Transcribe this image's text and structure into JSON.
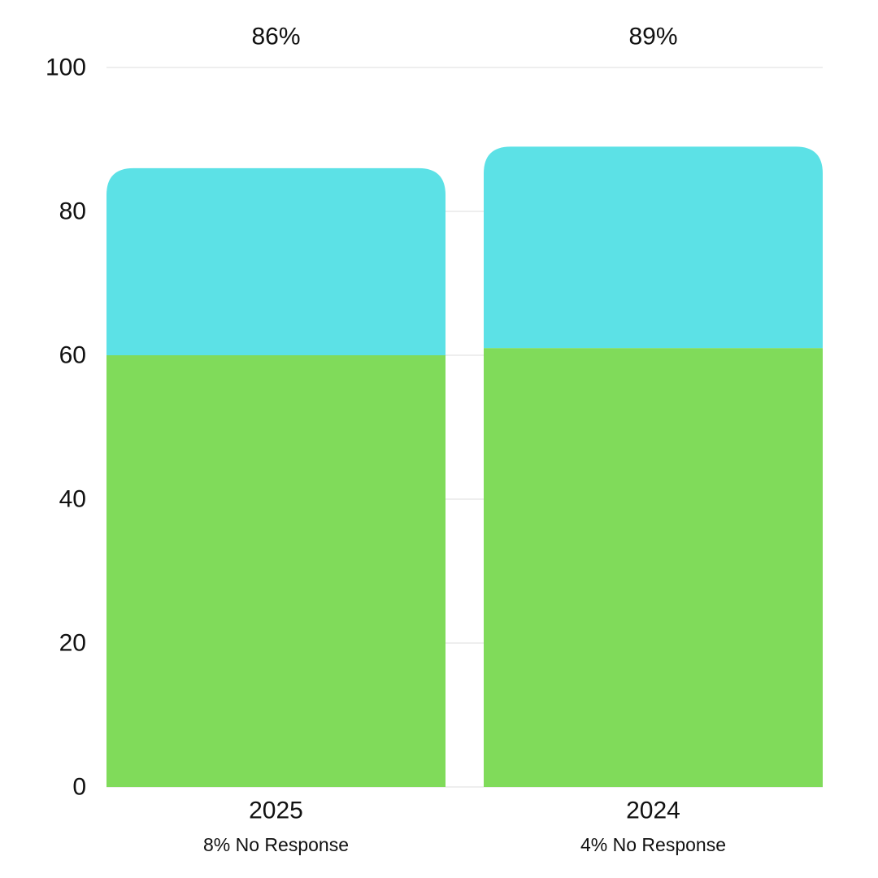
{
  "chart_data": {
    "type": "bar",
    "stacked": true,
    "categories": [
      "2025",
      "2024"
    ],
    "sublabels": [
      "8% No Response",
      "4% No Response"
    ],
    "totals": [
      "86%",
      "89%"
    ],
    "series": [
      {
        "values": [
          60,
          61
        ],
        "color": "#80db5a"
      },
      {
        "values": [
          26,
          28
        ],
        "color": "#5ce1e6"
      }
    ],
    "ylim": [
      0,
      100
    ],
    "yticks": [
      "0",
      "20",
      "40",
      "60",
      "80",
      "100"
    ],
    "grid": true,
    "title": "",
    "xlabel": "",
    "ylabel": ""
  }
}
